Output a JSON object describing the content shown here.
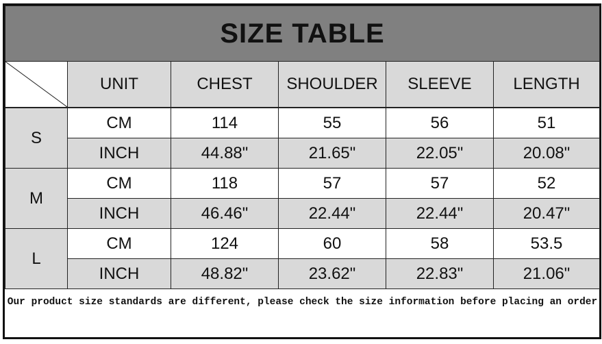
{
  "title": "SIZE TABLE",
  "headers": [
    "UNIT",
    "CHEST",
    "SHOULDER",
    "SLEEVE",
    "LENGTH"
  ],
  "sizes": [
    {
      "size": "S",
      "cm": {
        "unit": "CM",
        "values": [
          "114",
          "55",
          "56",
          "51"
        ]
      },
      "inch": {
        "unit": "INCH",
        "values": [
          "44.88\"",
          "21.65\"",
          "22.05\"",
          "20.08\""
        ]
      }
    },
    {
      "size": "M",
      "cm": {
        "unit": "CM",
        "values": [
          "118",
          "57",
          "57",
          "52"
        ]
      },
      "inch": {
        "unit": "INCH",
        "values": [
          "46.46\"",
          "22.44\"",
          "22.44\"",
          "20.47\""
        ]
      }
    },
    {
      "size": "L",
      "cm": {
        "unit": "CM",
        "values": [
          "124",
          "60",
          "58",
          "53.5"
        ]
      },
      "inch": {
        "unit": "INCH",
        "values": [
          "48.82\"",
          "23.62\"",
          "22.83\"",
          "21.06\""
        ]
      }
    }
  ],
  "footer_note": "Our product size standards are different, please check the size information before placing an order",
  "colors": {
    "title_bg": "#808080",
    "shaded_cell": "#d9d9d9",
    "white_cell": "#ffffff"
  }
}
